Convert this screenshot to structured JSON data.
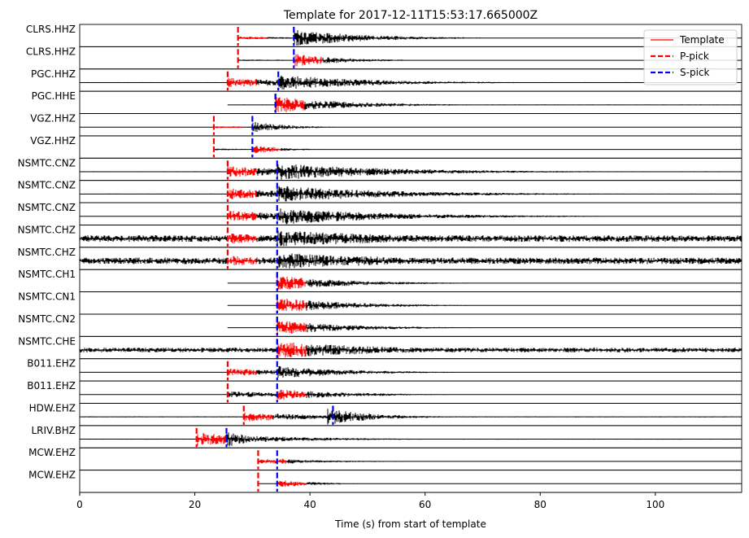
{
  "chart_data": {
    "type": "line",
    "title": "Template for 2017-12-11T15:53:17.665000Z",
    "xlabel": "Time (s) from start of template",
    "xlim": [
      0,
      115
    ],
    "xticks": [
      0,
      20,
      40,
      60,
      80,
      100
    ],
    "xtick_labels": [
      "0",
      "20",
      "40",
      "60",
      "80",
      "100"
    ],
    "legend": {
      "placement": "top-right",
      "entries": [
        {
          "label": "Template",
          "color": "#ff0000",
          "style": "solid"
        },
        {
          "label": "P-pick",
          "color": "#ff0000",
          "style": "dashed"
        },
        {
          "label": "S-pick",
          "color": "#0000ff",
          "style": "dashed"
        }
      ]
    },
    "colors": {
      "trace": "#000000",
      "template": "#ff0000",
      "p_pick": "#ff0000",
      "s_pick": "#0000ff"
    },
    "traces": [
      {
        "label": "CLRS.HHZ",
        "p": 27.5,
        "s": 37.2,
        "tpl": [
          27.5,
          32.5
        ],
        "start": 27.5,
        "onset": 37.2,
        "amp": 0.9,
        "pamp": 0.15,
        "noise": 0.02,
        "decay": 12
      },
      {
        "label": "CLRS.HHZ",
        "p": 27.5,
        "s": 37.2,
        "tpl": [
          37.2,
          42.2
        ],
        "start": 27.5,
        "onset": 37.2,
        "amp": 0.7,
        "pamp": 0.1,
        "noise": 0.02,
        "decay": 8
      },
      {
        "label": "PGC.HHZ",
        "p": 25.7,
        "s": 34.5,
        "tpl": [
          25.7,
          30.7
        ],
        "start": 0,
        "onset": 34.5,
        "amp": 0.85,
        "pamp": 0.5,
        "noise": 0.05,
        "decay": 15
      },
      {
        "label": "PGC.HHE",
        "p": 34.0,
        "s": 34.0,
        "tpl": [
          34.0,
          39.0
        ],
        "start": 25.7,
        "onset": 34.0,
        "amp": 0.9,
        "pamp": 0.2,
        "noise": 0.05,
        "decay": 12
      },
      {
        "label": "VGZ.HHZ",
        "p": 23.3,
        "s": 30.0,
        "tpl": [
          23.3,
          28.3
        ],
        "start": 0,
        "onset": 30.0,
        "amp": 0.6,
        "pamp": 0.1,
        "noise": 0.02,
        "decay": 6
      },
      {
        "label": "VGZ.HHZ",
        "p": 23.3,
        "s": 30.0,
        "tpl": [
          30.0,
          35.0
        ],
        "start": 23.3,
        "onset": 30.0,
        "amp": 0.5,
        "pamp": 0.1,
        "noise": 0.02,
        "decay": 5
      },
      {
        "label": "NSMTC.CNZ",
        "p": 25.7,
        "s": 34.3,
        "tpl": [
          25.7,
          30.7
        ],
        "start": 0,
        "onset": 34.3,
        "amp": 0.9,
        "pamp": 0.6,
        "noise": 0.05,
        "decay": 20
      },
      {
        "label": "NSMTC.CNZ",
        "p": 25.7,
        "s": 34.3,
        "tpl": [
          25.7,
          30.7
        ],
        "start": 0,
        "onset": 34.3,
        "amp": 0.9,
        "pamp": 0.6,
        "noise": 0.05,
        "decay": 20
      },
      {
        "label": "NSMTC.CNZ",
        "p": 25.7,
        "s": 34.3,
        "tpl": [
          25.7,
          30.7
        ],
        "start": 0,
        "onset": 34.3,
        "amp": 0.9,
        "pamp": 0.6,
        "noise": 0.05,
        "decay": 20
      },
      {
        "label": "NSMTC.CHZ",
        "p": 25.7,
        "s": 34.3,
        "tpl": [
          25.7,
          30.7
        ],
        "start": 0,
        "onset": 34.3,
        "amp": 0.9,
        "pamp": 0.55,
        "noise": 0.35,
        "decay": 25
      },
      {
        "label": "NSMTC.CHZ",
        "p": 25.7,
        "s": 34.3,
        "tpl": [
          25.7,
          30.7
        ],
        "start": 0,
        "onset": 34.3,
        "amp": 0.9,
        "pamp": 0.55,
        "noise": 0.35,
        "decay": 25
      },
      {
        "label": "NSMTC.CH1",
        "p": 34.3,
        "s": 34.3,
        "tpl": [
          34.3,
          39.3
        ],
        "start": 25.7,
        "onset": 34.3,
        "amp": 0.8,
        "pamp": 0.08,
        "noise": 0.03,
        "decay": 12
      },
      {
        "label": "NSMTC.CN1",
        "p": 34.3,
        "s": 34.3,
        "tpl": [
          34.3,
          39.3
        ],
        "start": 25.7,
        "onset": 34.3,
        "amp": 0.85,
        "pamp": 0.4,
        "noise": 0.03,
        "decay": 12
      },
      {
        "label": "NSMTC.CN2",
        "p": 34.3,
        "s": 34.3,
        "tpl": [
          34.3,
          39.3
        ],
        "start": 25.7,
        "onset": 34.3,
        "amp": 0.8,
        "pamp": 0.35,
        "noise": 0.03,
        "decay": 12
      },
      {
        "label": "NSMTC.CHE",
        "p": 34.3,
        "s": 34.3,
        "tpl": [
          34.3,
          39.3
        ],
        "start": 0,
        "onset": 34.3,
        "amp": 0.9,
        "pamp": 0.2,
        "noise": 0.25,
        "decay": 20
      },
      {
        "label": "B011.EHZ",
        "p": 25.7,
        "s": 34.3,
        "tpl": [
          25.7,
          30.7
        ],
        "start": 0,
        "onset": 34.3,
        "amp": 0.7,
        "pamp": 0.4,
        "noise": 0.04,
        "decay": 12
      },
      {
        "label": "B011.EHZ",
        "p": 25.7,
        "s": 34.3,
        "tpl": [
          34.3,
          39.3
        ],
        "start": 0,
        "onset": 34.3,
        "amp": 0.6,
        "pamp": 0.35,
        "noise": 0.04,
        "decay": 12
      },
      {
        "label": "HDW.EHZ",
        "p": 28.5,
        "s": 44.0,
        "tpl": [
          28.5,
          33.5
        ],
        "start": 0,
        "onset": 43.0,
        "amp": 0.9,
        "pamp": 0.5,
        "noise": 0.06,
        "decay": 8
      },
      {
        "label": "LRIV.BHZ",
        "p": 20.3,
        "s": 25.5,
        "tpl": [
          20.3,
          25.3
        ],
        "start": 0,
        "onset": 25.3,
        "amp": 0.9,
        "pamp": 0.7,
        "noise": 0.05,
        "decay": 5
      },
      {
        "label": "MCW.EHZ",
        "p": 31.0,
        "s": 34.3,
        "tpl": [
          31.0,
          36.0
        ],
        "start": 31.0,
        "onset": 34.3,
        "amp": 0.35,
        "pamp": 0.25,
        "noise": 0.01,
        "decay": 6
      },
      {
        "label": "MCW.EHZ",
        "p": 31.0,
        "s": 34.3,
        "tpl": [
          34.3,
          39.3
        ],
        "start": 31.0,
        "onset": 34.3,
        "amp": 0.4,
        "pamp": 0.05,
        "noise": 0.01,
        "decay": 7
      }
    ]
  }
}
